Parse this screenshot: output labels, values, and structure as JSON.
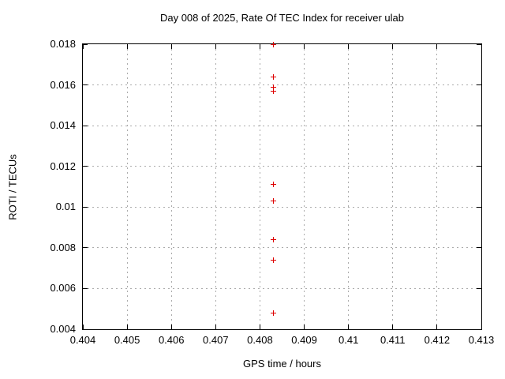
{
  "chart_data": {
    "type": "scatter",
    "title": "Day 008 of 2025, Rate Of TEC Index for receiver ulab",
    "xlabel": "GPS time / hours",
    "ylabel": "ROTI / TECUs",
    "xlim": [
      0.404,
      0.413
    ],
    "ylim": [
      0.004,
      0.018
    ],
    "grid": true,
    "legend_position": "none",
    "marker_style": "plus",
    "colors": {
      "marker": "#dd0000",
      "grid": "#ababab",
      "axis": "#000000",
      "background": "#ffffff"
    },
    "xticks": [
      {
        "v": 0.404,
        "label": "0.404"
      },
      {
        "v": 0.405,
        "label": "0.405"
      },
      {
        "v": 0.406,
        "label": "0.406"
      },
      {
        "v": 0.407,
        "label": "0.407"
      },
      {
        "v": 0.408,
        "label": "0.408"
      },
      {
        "v": 0.409,
        "label": "0.409"
      },
      {
        "v": 0.41,
        "label": "0.41"
      },
      {
        "v": 0.411,
        "label": "0.411"
      },
      {
        "v": 0.412,
        "label": "0.412"
      },
      {
        "v": 0.413,
        "label": "0.413"
      }
    ],
    "yticks": [
      {
        "v": 0.004,
        "label": "0.004"
      },
      {
        "v": 0.006,
        "label": "0.006"
      },
      {
        "v": 0.008,
        "label": "0.008"
      },
      {
        "v": 0.01,
        "label": "0.01"
      },
      {
        "v": 0.012,
        "label": "0.012"
      },
      {
        "v": 0.014,
        "label": "0.014"
      },
      {
        "v": 0.016,
        "label": "0.016"
      },
      {
        "v": 0.018,
        "label": "0.018"
      }
    ],
    "series": [
      {
        "name": "ROTI",
        "points": [
          {
            "x": 0.4083,
            "y": 0.018
          },
          {
            "x": 0.4083,
            "y": 0.0164
          },
          {
            "x": 0.4083,
            "y": 0.0159
          },
          {
            "x": 0.4083,
            "y": 0.0157
          },
          {
            "x": 0.4083,
            "y": 0.0111
          },
          {
            "x": 0.4083,
            "y": 0.0103
          },
          {
            "x": 0.4083,
            "y": 0.0084
          },
          {
            "x": 0.4083,
            "y": 0.0074
          },
          {
            "x": 0.4083,
            "y": 0.0048
          }
        ]
      }
    ]
  }
}
